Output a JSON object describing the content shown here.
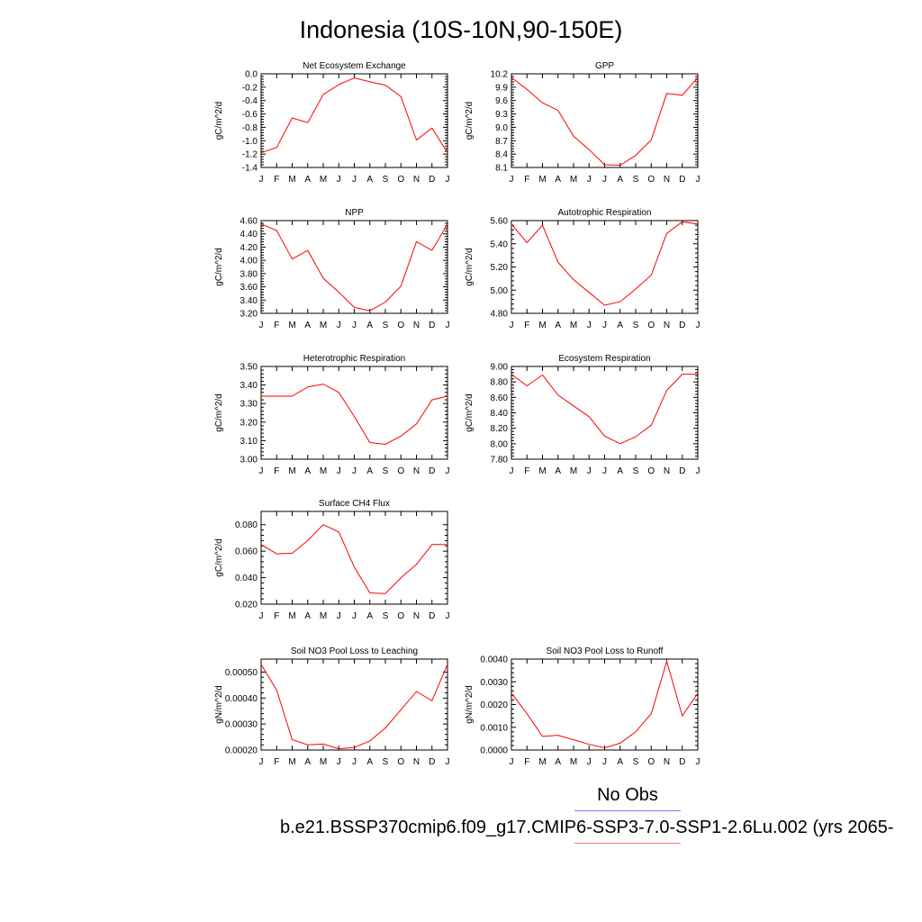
{
  "title": "Indonesia (10S-10N,90-150E)",
  "colors": {
    "series": "#ff0000",
    "legend_obs": "#8080ff",
    "legend_model": "#ff8080",
    "axis": "#000000"
  },
  "legend": {
    "obs_label": "No Obs",
    "model_label": "b.e21.BSSP370cmip6.f09_g17.CMIP6-SSP3-7.0-SSP1-2.6Lu.002 (yrs 2065-"
  },
  "chart_data": [
    {
      "type": "line",
      "title": "Net Ecosystem Exchange",
      "ylabel": "gC/m^2/d",
      "categories": [
        "J",
        "F",
        "M",
        "A",
        "M",
        "J",
        "J",
        "A",
        "S",
        "O",
        "N",
        "D",
        "J"
      ],
      "values": [
        -1.18,
        -1.1,
        -0.66,
        -0.73,
        -0.31,
        -0.16,
        -0.06,
        -0.12,
        -0.17,
        -0.34,
        -0.99,
        -0.81,
        -1.18
      ],
      "ylim": [
        -1.4,
        0.0
      ],
      "yticks": [
        0.0,
        -0.2,
        -0.4,
        -0.6,
        -0.8,
        -1.0,
        -1.2,
        -1.4
      ],
      "ytick_labels": [
        "0.0",
        "-0.2",
        "-0.4",
        "-0.6",
        "-0.8",
        "-1.0",
        "-1.2",
        "-1.4"
      ]
    },
    {
      "type": "line",
      "title": "GPP",
      "ylabel": "gC/m^2/d",
      "categories": [
        "J",
        "F",
        "M",
        "A",
        "M",
        "J",
        "J",
        "A",
        "S",
        "O",
        "N",
        "D",
        "J"
      ],
      "values": [
        10.12,
        9.85,
        9.55,
        9.38,
        8.8,
        8.5,
        8.16,
        8.15,
        8.37,
        8.72,
        9.76,
        9.72,
        10.12
      ],
      "ylim": [
        8.1,
        10.2
      ],
      "yticks": [
        10.2,
        9.9,
        9.6,
        9.3,
        9.0,
        8.7,
        8.4,
        8.1
      ],
      "ytick_labels": [
        "10.2",
        "9.9",
        "9.6",
        "9.3",
        "9.0",
        "8.7",
        "8.4",
        "8.1"
      ]
    },
    {
      "type": "line",
      "title": "NPP",
      "ylabel": "gC/m^2/d",
      "categories": [
        "J",
        "F",
        "M",
        "A",
        "M",
        "J",
        "J",
        "A",
        "S",
        "O",
        "N",
        "D",
        "J"
      ],
      "values": [
        4.55,
        4.45,
        4.02,
        4.15,
        3.73,
        3.52,
        3.29,
        3.24,
        3.37,
        3.61,
        4.28,
        4.15,
        4.55
      ],
      "ylim": [
        3.2,
        4.6
      ],
      "yticks": [
        4.6,
        4.4,
        4.2,
        4.0,
        3.8,
        3.6,
        3.4,
        3.2
      ],
      "ytick_labels": [
        "4.60",
        "4.40",
        "4.20",
        "4.00",
        "3.80",
        "3.60",
        "3.40",
        "3.20"
      ]
    },
    {
      "type": "line",
      "title": "Autotrophic Respiration",
      "ylabel": "gC/m^2/d",
      "categories": [
        "J",
        "F",
        "M",
        "A",
        "M",
        "J",
        "J",
        "A",
        "S",
        "O",
        "N",
        "D",
        "J"
      ],
      "values": [
        5.57,
        5.41,
        5.56,
        5.24,
        5.09,
        4.98,
        4.87,
        4.9,
        5.01,
        5.13,
        5.49,
        5.59,
        5.57
      ],
      "ylim": [
        4.8,
        5.6
      ],
      "yticks": [
        5.6,
        5.4,
        5.2,
        5.0,
        4.8
      ],
      "ytick_labels": [
        "5.60",
        "5.40",
        "5.20",
        "5.00",
        "4.80"
      ]
    },
    {
      "type": "line",
      "title": "Heterotrophic Respiration",
      "ylabel": "gC/m^2/d",
      "categories": [
        "J",
        "F",
        "M",
        "A",
        "M",
        "J",
        "J",
        "A",
        "S",
        "O",
        "N",
        "D",
        "J"
      ],
      "values": [
        3.34,
        3.34,
        3.34,
        3.39,
        3.405,
        3.36,
        3.23,
        3.09,
        3.08,
        3.125,
        3.19,
        3.32,
        3.34
      ],
      "ylim": [
        3.0,
        3.5
      ],
      "yticks": [
        3.5,
        3.4,
        3.3,
        3.2,
        3.1,
        3.0
      ],
      "ytick_labels": [
        "3.50",
        "3.40",
        "3.30",
        "3.20",
        "3.10",
        "3.00"
      ]
    },
    {
      "type": "line",
      "title": "Ecosystem Respiration",
      "ylabel": "gC/m^2/d",
      "categories": [
        "J",
        "F",
        "M",
        "A",
        "M",
        "J",
        "J",
        "A",
        "S",
        "O",
        "N",
        "D",
        "J"
      ],
      "values": [
        8.9,
        8.75,
        8.89,
        8.63,
        8.49,
        8.35,
        8.1,
        8.0,
        8.09,
        8.24,
        8.69,
        8.9,
        8.9
      ],
      "ylim": [
        7.8,
        9.0
      ],
      "yticks": [
        9.0,
        8.8,
        8.6,
        8.4,
        8.2,
        8.0,
        7.8
      ],
      "ytick_labels": [
        "9.00",
        "8.80",
        "8.60",
        "8.40",
        "8.20",
        "8.00",
        "7.80"
      ]
    },
    {
      "type": "line",
      "title": "Surface CH4 Flux",
      "ylabel": "gC/m^2/d",
      "categories": [
        "J",
        "F",
        "M",
        "A",
        "M",
        "J",
        "J",
        "A",
        "S",
        "O",
        "N",
        "D",
        "J"
      ],
      "values": [
        0.065,
        0.058,
        0.0585,
        0.068,
        0.08,
        0.0745,
        0.048,
        0.0285,
        0.028,
        0.04,
        0.05,
        0.065,
        0.065
      ],
      "ylim": [
        0.02,
        0.09
      ],
      "yticks": [
        0.08,
        0.06,
        0.04,
        0.02
      ],
      "ytick_labels": [
        "0.080",
        "0.060",
        "0.040",
        "0.020"
      ]
    },
    {
      "type": "line",
      "title": "Soil NO3 Pool Loss to Leaching",
      "ylabel": "gN/m^2/d",
      "categories": [
        "J",
        "F",
        "M",
        "A",
        "M",
        "J",
        "J",
        "A",
        "S",
        "O",
        "N",
        "D",
        "J"
      ],
      "values": [
        0.00053,
        0.00043,
        0.00024,
        0.00022,
        0.000223,
        0.000205,
        0.00021,
        0.000235,
        0.000285,
        0.000355,
        0.000425,
        0.00039,
        0.00053
      ],
      "ylim": [
        0.0002,
        0.00055
      ],
      "yticks": [
        0.0005,
        0.0004,
        0.0003,
        0.0002
      ],
      "ytick_labels": [
        "0.00050",
        "0.00040",
        "0.00030",
        "0.00020"
      ]
    },
    {
      "type": "line",
      "title": "Soil NO3 Pool Loss to Runoff",
      "ylabel": "gN/m^2/d",
      "categories": [
        "J",
        "F",
        "M",
        "A",
        "M",
        "J",
        "J",
        "A",
        "S",
        "O",
        "N",
        "D",
        "J"
      ],
      "values": [
        0.0025,
        0.0016,
        0.0006,
        0.00065,
        0.00045,
        0.00025,
        0.0001,
        0.0003,
        0.0008,
        0.0016,
        0.0039,
        0.0015,
        0.0025
      ],
      "ylim": [
        0.0,
        0.004
      ],
      "yticks": [
        0.004,
        0.003,
        0.002,
        0.001,
        0.0
      ],
      "ytick_labels": [
        "0.0040",
        "0.0030",
        "0.0020",
        "0.0010",
        "0.0000"
      ]
    }
  ]
}
